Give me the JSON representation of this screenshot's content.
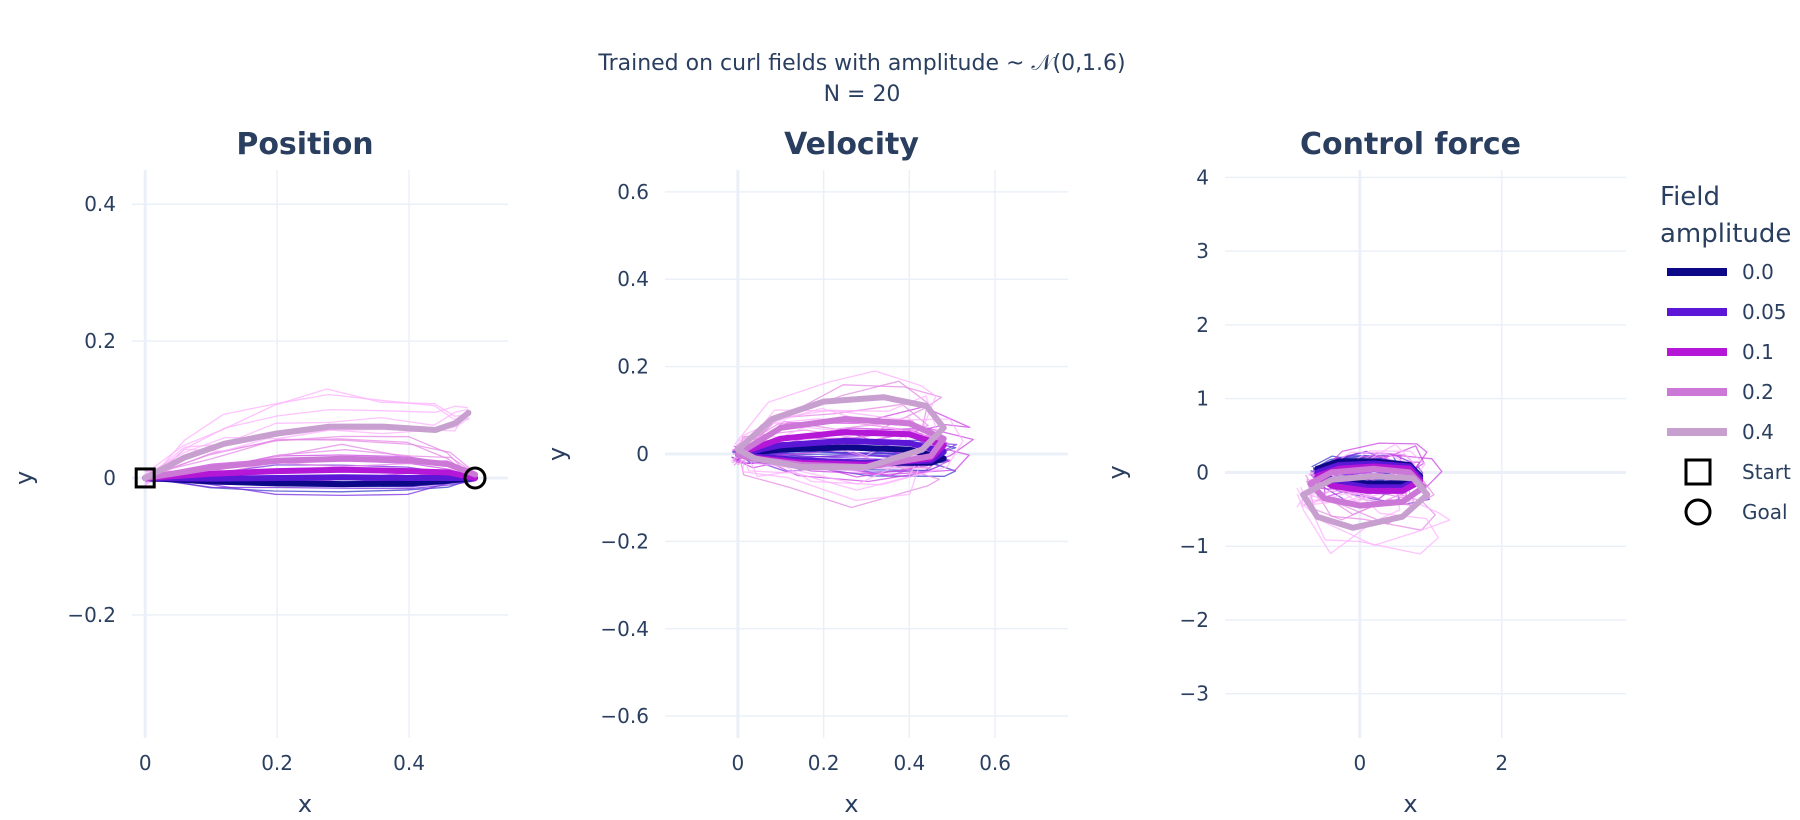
{
  "figure": {
    "title_line1": "Trained on curl fields with amplitude ~ 𝒩(0,1.6)",
    "title_line2": "N = 20"
  },
  "legend": {
    "title_line1": "Field",
    "title_line2": "amplitude",
    "entries": [
      {
        "label": "0.0",
        "color": "#0d0887",
        "kind": "line"
      },
      {
        "label": "0.05",
        "color": "#5c16d6",
        "kind": "line"
      },
      {
        "label": "0.1",
        "color": "#b418d6",
        "kind": "line"
      },
      {
        "label": "0.2",
        "color": "#cc78d6",
        "kind": "line"
      },
      {
        "label": "0.4",
        "color": "#c8a0d0",
        "kind": "line"
      },
      {
        "label": "Start",
        "color": "#000000",
        "kind": "square"
      },
      {
        "label": "Goal",
        "color": "#000000",
        "kind": "circle"
      }
    ]
  },
  "colors": {
    "text": "#2a3f5f",
    "grid": "#ebf0f8",
    "zeroline": "#ebf0f8",
    "individual_traces": [
      "#3c3ccc",
      "#7a2ee0",
      "#cc44e6",
      "#e68ae6",
      "#ffb0ff"
    ]
  },
  "chart_data": [
    {
      "type": "line",
      "title": "Position",
      "xlabel": "x",
      "ylabel": "y",
      "xlim": [
        -0.02,
        0.55
      ],
      "ylim": [
        -0.38,
        0.45
      ],
      "xticks": [
        0,
        0.2,
        0.4
      ],
      "xtick_labels": [
        "0",
        "0.2",
        "0.4"
      ],
      "yticks": [
        -0.2,
        0,
        0.2,
        0.4
      ],
      "ytick_labels": [
        "−0.2",
        "0",
        "0.2",
        "0.4"
      ],
      "series": [
        {
          "name": "0.0",
          "x": [
            0,
            0.1,
            0.2,
            0.3,
            0.4,
            0.46,
            0.5
          ],
          "y": [
            0,
            -0.005,
            -0.008,
            -0.009,
            -0.008,
            -0.004,
            0
          ]
        },
        {
          "name": "0.05",
          "x": [
            0,
            0.1,
            0.2,
            0.3,
            0.4,
            0.46,
            0.5
          ],
          "y": [
            0,
            -0.001,
            0,
            0.001,
            0.0,
            0.0,
            0
          ]
        },
        {
          "name": "0.1",
          "x": [
            0,
            0.1,
            0.2,
            0.3,
            0.4,
            0.46,
            0.5
          ],
          "y": [
            0,
            0.006,
            0.01,
            0.012,
            0.01,
            0.008,
            0
          ]
        },
        {
          "name": "0.2",
          "x": [
            0,
            0.1,
            0.2,
            0.3,
            0.4,
            0.46,
            0.5
          ],
          "y": [
            0,
            0.015,
            0.025,
            0.028,
            0.026,
            0.02,
            0.005
          ]
        },
        {
          "name": "0.4",
          "x": [
            0,
            0.06,
            0.12,
            0.2,
            0.28,
            0.36,
            0.44,
            0.47,
            0.49
          ],
          "y": [
            0,
            0.03,
            0.05,
            0.065,
            0.075,
            0.075,
            0.07,
            0.08,
            0.095
          ]
        }
      ],
      "markers": {
        "start": [
          0,
          0
        ],
        "goal": [
          0.5,
          0
        ]
      }
    },
    {
      "type": "line",
      "title": "Velocity",
      "xlabel": "x",
      "ylabel": "y",
      "xlim": [
        -0.17,
        0.77
      ],
      "ylim": [
        -0.65,
        0.65
      ],
      "xticks": [
        0,
        0.2,
        0.4,
        0.6
      ],
      "xtick_labels": [
        "0",
        "0.2",
        "0.4",
        "0.6"
      ],
      "yticks": [
        -0.6,
        -0.4,
        -0.2,
        0,
        0.2,
        0.4,
        0.6
      ],
      "ytick_labels": [
        "−0.6",
        "−0.4",
        "−0.2",
        "0",
        "0.2",
        "0.4",
        "0.6"
      ],
      "series": [
        {
          "name": "0.0",
          "x": [
            0,
            0.1,
            0.25,
            0.4,
            0.48,
            0.45,
            0.3,
            0.15,
            0.03,
            0
          ],
          "y": [
            0,
            0.01,
            0.015,
            0.01,
            -0.01,
            -0.02,
            -0.02,
            -0.015,
            -0.005,
            0
          ]
        },
        {
          "name": "0.05",
          "x": [
            0,
            0.1,
            0.25,
            0.4,
            0.48,
            0.45,
            0.3,
            0.15,
            0.03,
            0
          ],
          "y": [
            0,
            0.02,
            0.03,
            0.025,
            0.005,
            -0.015,
            -0.02,
            -0.015,
            -0.005,
            0
          ]
        },
        {
          "name": "0.1",
          "x": [
            0,
            0.1,
            0.25,
            0.4,
            0.48,
            0.45,
            0.3,
            0.15,
            0.03,
            0
          ],
          "y": [
            0,
            0.035,
            0.05,
            0.045,
            0.02,
            -0.01,
            -0.025,
            -0.02,
            -0.008,
            0
          ]
        },
        {
          "name": "0.2",
          "x": [
            0,
            0.1,
            0.25,
            0.4,
            0.48,
            0.45,
            0.3,
            0.15,
            0.03,
            0
          ],
          "y": [
            0,
            0.06,
            0.08,
            0.07,
            0.035,
            -0.005,
            -0.03,
            -0.025,
            -0.01,
            0
          ]
        },
        {
          "name": "0.4",
          "x": [
            0,
            0.08,
            0.2,
            0.34,
            0.44,
            0.48,
            0.43,
            0.3,
            0.15,
            0.04,
            0
          ],
          "y": [
            0.01,
            0.08,
            0.12,
            0.13,
            0.11,
            0.06,
            0.01,
            -0.03,
            -0.03,
            -0.01,
            0.01
          ]
        }
      ]
    },
    {
      "type": "line",
      "title": "Control force",
      "xlabel": "x",
      "ylabel": "y",
      "xlim": [
        -1.9,
        3.75
      ],
      "ylim": [
        -3.6,
        4.1
      ],
      "xticks": [
        0,
        2
      ],
      "xtick_labels": [
        "0",
        "2"
      ],
      "yticks": [
        -3,
        -2,
        -1,
        0,
        1,
        2,
        3,
        4
      ],
      "ytick_labels": [
        "−3",
        "−2",
        "−1",
        "0",
        "1",
        "2",
        "3",
        "4"
      ],
      "series": [
        {
          "name": "0.0",
          "x": [
            -0.6,
            -0.3,
            0.2,
            0.7,
            0.85,
            0.6,
            0.1,
            -0.4,
            -0.6
          ],
          "y": [
            0.05,
            0.15,
            0.15,
            0.1,
            -0.05,
            -0.15,
            -0.15,
            -0.1,
            0.05
          ]
        },
        {
          "name": "0.05",
          "x": [
            -0.6,
            -0.3,
            0.2,
            0.7,
            0.85,
            0.6,
            0.1,
            -0.4,
            -0.6
          ],
          "y": [
            0.0,
            0.1,
            0.12,
            0.08,
            -0.08,
            -0.2,
            -0.2,
            -0.12,
            0.0
          ]
        },
        {
          "name": "0.1",
          "x": [
            -0.6,
            -0.3,
            0.2,
            0.7,
            0.85,
            0.6,
            0.1,
            -0.4,
            -0.6
          ],
          "y": [
            -0.05,
            0.05,
            0.08,
            0.05,
            -0.12,
            -0.25,
            -0.25,
            -0.18,
            -0.05
          ]
        },
        {
          "name": "0.2",
          "x": [
            -0.7,
            -0.4,
            0.2,
            0.7,
            0.9,
            0.6,
            0.0,
            -0.5,
            -0.7
          ],
          "y": [
            -0.15,
            0.0,
            0.05,
            0.0,
            -0.2,
            -0.4,
            -0.45,
            -0.35,
            -0.15
          ]
        },
        {
          "name": "0.4",
          "x": [
            -0.8,
            -0.4,
            0.2,
            0.75,
            0.95,
            0.6,
            -0.1,
            -0.6,
            -0.8
          ],
          "y": [
            -0.3,
            -0.1,
            -0.05,
            -0.08,
            -0.3,
            -0.6,
            -0.75,
            -0.6,
            -0.3
          ]
        }
      ]
    }
  ]
}
